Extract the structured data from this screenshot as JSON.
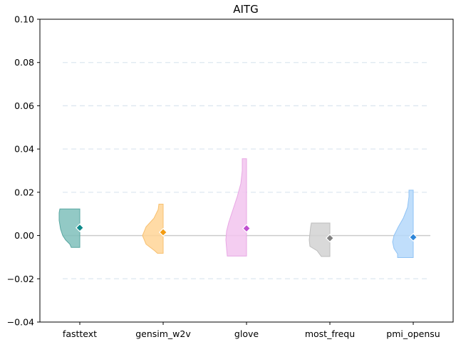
{
  "chart_data": {
    "type": "violin",
    "title": "AITG",
    "xlabel": "",
    "ylabel": "",
    "ylim": [
      -0.04,
      0.1
    ],
    "yticks": [
      -0.04,
      -0.02,
      0.0,
      0.02,
      0.04,
      0.06,
      0.08,
      0.1
    ],
    "ytick_labels": [
      "−0.04",
      "−0.02",
      "0.00",
      "0.02",
      "0.04",
      "0.06",
      "0.08",
      "0.10"
    ],
    "grid": "dashed horizontal at 0.02 steps",
    "baseline": 0.0,
    "categories": [
      "fasttext",
      "gensim_w2v",
      "glove",
      "most_frequ",
      "pmi_opensu"
    ],
    "series": [
      {
        "category": "fasttext",
        "mean": 0.0036,
        "min": -0.0055,
        "max": 0.0123,
        "fill": "#7fbfbb",
        "edge": "#5aa7a2",
        "marker": "#0e8a8a",
        "profile": [
          [
            0.0123,
            28
          ],
          [
            0.0105,
            29
          ],
          [
            0.007,
            29
          ],
          [
            0.003,
            27
          ],
          [
            0.0,
            24
          ],
          [
            -0.002,
            20
          ],
          [
            -0.004,
            14
          ],
          [
            -0.0055,
            12
          ]
        ]
      },
      {
        "category": "gensim_w2v",
        "mean": 0.0015,
        "min": -0.0082,
        "max": 0.0145,
        "fill": "#ffd596",
        "edge": "#f7c070",
        "marker": "#f39c12",
        "profile": [
          [
            0.0145,
            6
          ],
          [
            0.012,
            7
          ],
          [
            0.008,
            13
          ],
          [
            0.004,
            24
          ],
          [
            0.0,
            29
          ],
          [
            -0.004,
            24
          ],
          [
            -0.007,
            12
          ],
          [
            -0.0082,
            8
          ]
        ]
      },
      {
        "category": "glove",
        "mean": 0.0033,
        "min": -0.0095,
        "max": 0.0355,
        "fill": "#f2c4ee",
        "edge": "#e8a8e4",
        "marker": "#c050d0",
        "profile": [
          [
            0.0355,
            6
          ],
          [
            0.03,
            6
          ],
          [
            0.024,
            8
          ],
          [
            0.018,
            13
          ],
          [
            0.012,
            19
          ],
          [
            0.006,
            25
          ],
          [
            0.002,
            28
          ],
          [
            -0.002,
            29
          ],
          [
            -0.006,
            28
          ],
          [
            -0.0095,
            27
          ]
        ]
      },
      {
        "category": "most_frequ",
        "mean": -0.0012,
        "min": -0.0097,
        "max": 0.0058,
        "fill": "#d2d2d2",
        "edge": "#bdbdbd",
        "marker": "#808080",
        "profile": [
          [
            0.0058,
            26
          ],
          [
            0.004,
            27
          ],
          [
            0.001,
            28
          ],
          [
            -0.002,
            29
          ],
          [
            -0.005,
            28
          ],
          [
            -0.007,
            18
          ],
          [
            -0.0097,
            12
          ]
        ]
      },
      {
        "category": "pmi_opensu",
        "mean": -0.0008,
        "min": -0.0102,
        "max": 0.021,
        "fill": "#b5d8fa",
        "edge": "#90c3f5",
        "marker": "#2f86d8",
        "profile": [
          [
            0.021,
            6
          ],
          [
            0.018,
            6
          ],
          [
            0.013,
            8
          ],
          [
            0.008,
            14
          ],
          [
            0.004,
            21
          ],
          [
            0.0,
            27
          ],
          [
            -0.003,
            29
          ],
          [
            -0.006,
            27
          ],
          [
            -0.0085,
            22
          ],
          [
            -0.0102,
            22
          ]
        ]
      }
    ]
  }
}
